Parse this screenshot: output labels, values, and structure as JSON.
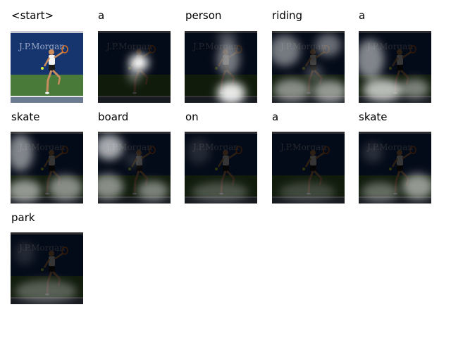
{
  "frames": [
    {
      "word": "<start>",
      "attention": "none"
    },
    {
      "word": "a",
      "attention": "center"
    },
    {
      "word": "person",
      "attention": "player"
    },
    {
      "word": "riding",
      "attention": "upper-and-lower"
    },
    {
      "word": "a",
      "attention": "left-and-lower"
    },
    {
      "word": "skate",
      "attention": "left-lower"
    },
    {
      "word": "board",
      "attention": "left-upper-lower"
    },
    {
      "word": "on",
      "attention": "diffuse-lower"
    },
    {
      "word": "a",
      "attention": "diffuse"
    },
    {
      "word": "skate",
      "attention": "lower-right"
    },
    {
      "word": "park",
      "attention": "lower-wide"
    }
  ],
  "scene": {
    "banner_text": "J.P.Morgan",
    "colors": {
      "wall": "#16346e",
      "court": "#4a7a3a",
      "court_line": "#e8e8e8",
      "skin": "#c98c5e",
      "shirt": "#f2f2f2",
      "shorts": "#1a1a1a"
    }
  }
}
